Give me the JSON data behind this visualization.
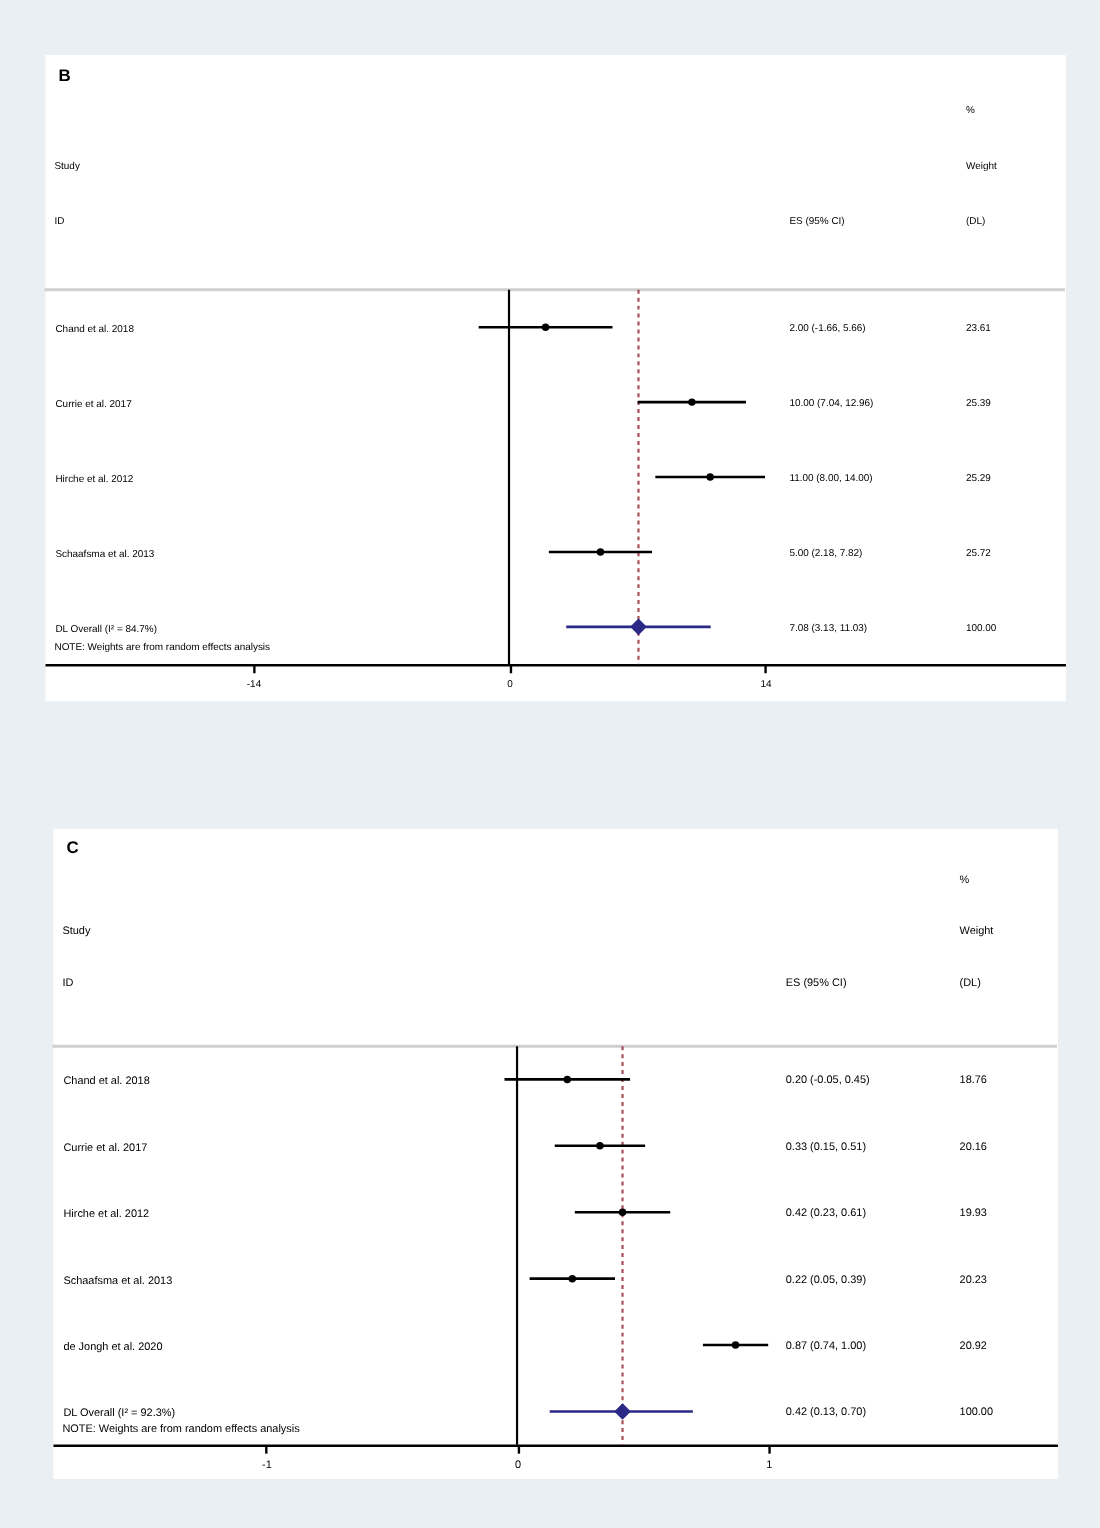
{
  "chart_data": [
    {
      "type": "scatter",
      "title": "B",
      "orientation": "horizontal",
      "categories": [
        "Chand et al. 2018",
        "Currie et al. 2017",
        "Hirche et al. 2012",
        "Schaafsma et al. 2013",
        "DL Overall (I² = 84.7%)"
      ],
      "series": [
        {
          "type": "scatter",
          "color": "#000000",
          "marker": "circle",
          "values": [
            2.0,
            10.0,
            11.0,
            5.0,
            null
          ],
          "errors": [
            [
              -1.66,
              5.66
            ],
            [
              7.04,
              12.96
            ],
            [
              8.0,
              14.0
            ],
            [
              2.18,
              7.82
            ],
            null
          ]
        },
        {
          "type": "scatter",
          "color": "#2a2a86",
          "marker": "diamond",
          "values": [
            null,
            null,
            null,
            null,
            7.08
          ],
          "errors": [
            null,
            null,
            null,
            null,
            [
              3.13,
              11.03
            ]
          ]
        }
      ],
      "xlim": [
        -25.4,
        30.4
      ],
      "xticks": [
        -14,
        0,
        14
      ],
      "ref_lines": [
        {
          "axis": "x",
          "value": 0,
          "color": "#000000"
        },
        {
          "axis": "x",
          "value": 7.08,
          "color": "#a5505a",
          "line_style": "dashed"
        }
      ],
      "annotations": [
        "%",
        "Study",
        "Weight",
        "ID",
        "ES (95% CI)",
        "(DL)",
        "2.00 (-1.66, 5.66)",
        "23.61",
        "10.00 (7.04, 12.96)",
        "25.39",
        "11.00 (8.00, 14.00)",
        "25.29",
        "5.00 (2.18, 7.82)",
        "25.72",
        "7.08 (3.13, 11.03)",
        "100.00",
        "NOTE: Weights are from random effects analysis"
      ]
    },
    {
      "type": "scatter",
      "title": "C",
      "orientation": "horizontal",
      "categories": [
        "Chand et al. 2018",
        "Currie et al. 2017",
        "Hirche et al. 2012",
        "Schaafsma et al. 2013",
        "de Jongh et al. 2020",
        "DL Overall (I² = 92.3%)"
      ],
      "series": [
        {
          "type": "scatter",
          "color": "#000000",
          "marker": "circle",
          "values": [
            0.2,
            0.33,
            0.42,
            0.22,
            0.87,
            null
          ],
          "errors": [
            [
              -0.05,
              0.45
            ],
            [
              0.15,
              0.51
            ],
            [
              0.23,
              0.61
            ],
            [
              0.05,
              0.39
            ],
            [
              0.74,
              1.0
            ],
            null
          ]
        },
        {
          "type": "scatter",
          "color": "#2a2a86",
          "marker": "diamond",
          "values": [
            null,
            null,
            null,
            null,
            null,
            0.42
          ],
          "errors": [
            null,
            null,
            null,
            null,
            null,
            [
              0.13,
              0.7
            ]
          ]
        }
      ],
      "xlim": [
        -1.85,
        2.15
      ],
      "xticks": [
        -1,
        0,
        1
      ],
      "ref_lines": [
        {
          "axis": "x",
          "value": 0,
          "color": "#000000"
        },
        {
          "axis": "x",
          "value": 0.42,
          "color": "#a5505a",
          "line_style": "dashed"
        }
      ],
      "annotations": [
        "%",
        "Study",
        "Weight",
        "ID",
        "ES (95% CI)",
        "(DL)",
        "0.20 (-0.05, 0.45)",
        "18.76",
        "0.33 (0.15, 0.51)",
        "20.16",
        "0.42 (0.23, 0.61)",
        "19.93",
        "0.22 (0.05, 0.39)",
        "20.23",
        "0.87 (0.74, 1.00)",
        "20.92",
        "0.42 (0.13, 0.70)",
        "100.00",
        "NOTE: Weights are from random effects analysis"
      ]
    }
  ]
}
